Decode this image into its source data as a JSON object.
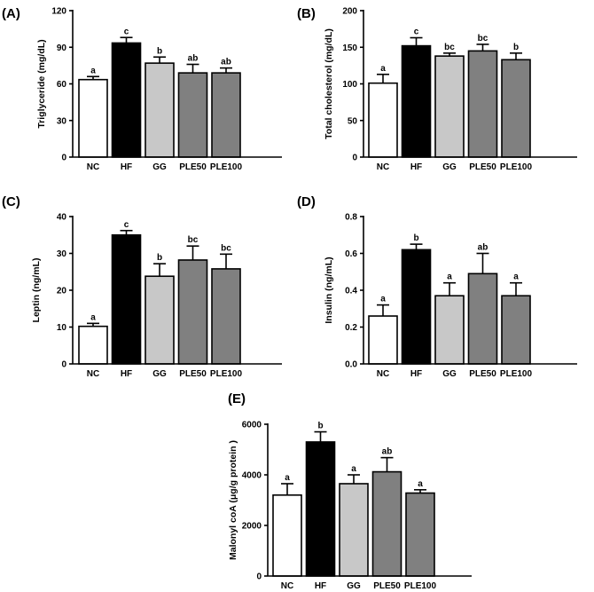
{
  "chart_data": [
    {
      "panel": "(A)",
      "type": "bar",
      "ylabel": "Triglyceride (mg/dL)",
      "ylim": [
        0,
        120
      ],
      "yticks": [
        0,
        30,
        60,
        90,
        120
      ],
      "categories": [
        "NC",
        "HF",
        "GG",
        "PLE50",
        "PLE100"
      ],
      "values": [
        63.5,
        93.5,
        77,
        69,
        69
      ],
      "errors": [
        2.5,
        4.5,
        5,
        7,
        4
      ],
      "letters": [
        "a",
        "c",
        "b",
        "ab",
        "ab"
      ],
      "colors": [
        "#ffffff",
        "#000000",
        "#c8c8c8",
        "#808080",
        "#808080"
      ]
    },
    {
      "panel": "(B)",
      "type": "bar",
      "ylabel": "Total cholesterol (mg/dL)",
      "ylim": [
        0,
        200
      ],
      "yticks": [
        0,
        50,
        100,
        150,
        200
      ],
      "categories": [
        "NC",
        "HF",
        "GG",
        "PLE50",
        "PLE100"
      ],
      "values": [
        101,
        152,
        138,
        145,
        133
      ],
      "errors": [
        12,
        11,
        4,
        9,
        9
      ],
      "letters": [
        "a",
        "c",
        "bc",
        "bc",
        "b"
      ],
      "colors": [
        "#ffffff",
        "#000000",
        "#c8c8c8",
        "#808080",
        "#808080"
      ]
    },
    {
      "panel": "(C)",
      "type": "bar",
      "ylabel": "Leptin (ng/mL)",
      "ylim": [
        0,
        40
      ],
      "yticks": [
        0,
        10,
        20,
        30,
        40
      ],
      "categories": [
        "NC",
        "HF",
        "GG",
        "PLE50",
        "PLE100"
      ],
      "values": [
        10.2,
        35,
        23.8,
        28.2,
        25.8
      ],
      "errors": [
        0.8,
        1.2,
        3.4,
        3.8,
        4
      ],
      "letters": [
        "a",
        "c",
        "b",
        "bc",
        "bc"
      ],
      "colors": [
        "#ffffff",
        "#000000",
        "#c8c8c8",
        "#808080",
        "#808080"
      ]
    },
    {
      "panel": "(D)",
      "type": "bar",
      "ylabel": "Insulin (ng/mL)",
      "ylim": [
        0,
        0.8
      ],
      "yticks": [
        "0.0",
        "0.2",
        "0.4",
        "0.6",
        "0.8"
      ],
      "categories": [
        "NC",
        "HF",
        "GG",
        "PLE50",
        "PLE100"
      ],
      "values": [
        0.26,
        0.62,
        0.37,
        0.49,
        0.37
      ],
      "errors": [
        0.06,
        0.03,
        0.07,
        0.11,
        0.07
      ],
      "letters": [
        "a",
        "b",
        "a",
        "ab",
        "a"
      ],
      "colors": [
        "#ffffff",
        "#000000",
        "#c8c8c8",
        "#808080",
        "#808080"
      ]
    },
    {
      "panel": "(E)",
      "type": "bar",
      "ylabel": "Malonyl coA (μg/g protein )",
      "ylim": [
        0,
        6000
      ],
      "yticks": [
        0,
        2000,
        4000,
        6000
      ],
      "categories": [
        "NC",
        "HF",
        "GG",
        "PLE50",
        "PLE100"
      ],
      "values": [
        3200,
        5300,
        3650,
        4120,
        3280
      ],
      "errors": [
        450,
        400,
        350,
        560,
        130
      ],
      "letters": [
        "a",
        "b",
        "a",
        "ab",
        "a"
      ],
      "colors": [
        "#ffffff",
        "#000000",
        "#c8c8c8",
        "#808080",
        "#808080"
      ]
    }
  ]
}
